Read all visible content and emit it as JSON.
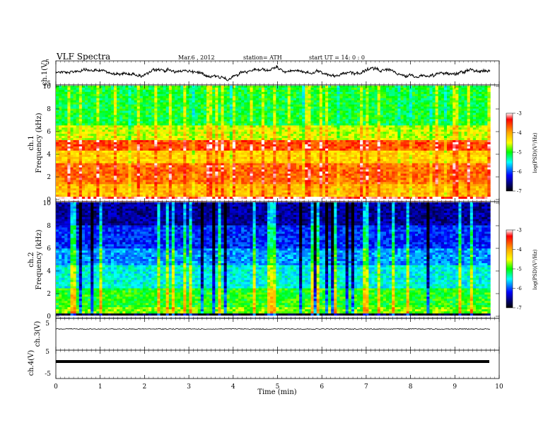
{
  "header": {
    "title": "VLF Spectra",
    "date": "Mar.6 , 2012",
    "station": "station= ATH",
    "start_ut": "start UT = 14: 0 : 0"
  },
  "chart_data": {
    "type": "heatmap",
    "xlabel": "Time (min)",
    "xlim": [
      0,
      10
    ],
    "x_ticks": [
      "0",
      "1",
      "2",
      "3",
      "4",
      "5",
      "6",
      "7",
      "8",
      "9",
      "10"
    ],
    "data_end_min": 9.8,
    "panels": [
      {
        "kind": "waveform",
        "ylabel": "ch.1(V)",
        "ylim": [
          -5,
          5
        ],
        "y_ticks": [
          "5",
          "-5"
        ]
      },
      {
        "kind": "spectrogram",
        "ylabel": "ch.1",
        "ylabel2": "Frequency (kHz)",
        "ylim": [
          0,
          10
        ],
        "y_ticks": [
          "10",
          "8",
          "6",
          "4",
          "2",
          "0"
        ],
        "colorbar": {
          "label": "log(PSD)(V²/Hz)",
          "range": [
            -7,
            -3
          ],
          "ticks": [
            "-3",
            "-4",
            "-5",
            "-6",
            "-7"
          ]
        }
      },
      {
        "kind": "spectrogram",
        "ylabel": "ch.2",
        "ylabel2": "Frequency (kHz)",
        "ylim": [
          0,
          10
        ],
        "y_ticks": [
          "10",
          "8",
          "6",
          "4",
          "2",
          "0"
        ],
        "colorbar": {
          "label": "log(PSD)(V²/Hz)",
          "range": [
            -7,
            -3
          ],
          "ticks": [
            "-3",
            "-4",
            "-5",
            "-6",
            "-7"
          ]
        }
      },
      {
        "kind": "waveform",
        "ylabel": "ch.3(V)",
        "ylim": [
          -5,
          5
        ],
        "y_ticks": [
          "5",
          "-5"
        ]
      },
      {
        "kind": "waveform",
        "ylabel": "ch.4(V)",
        "ylim": [
          -5,
          5
        ],
        "y_ticks": [
          "5",
          "-5"
        ]
      }
    ]
  }
}
